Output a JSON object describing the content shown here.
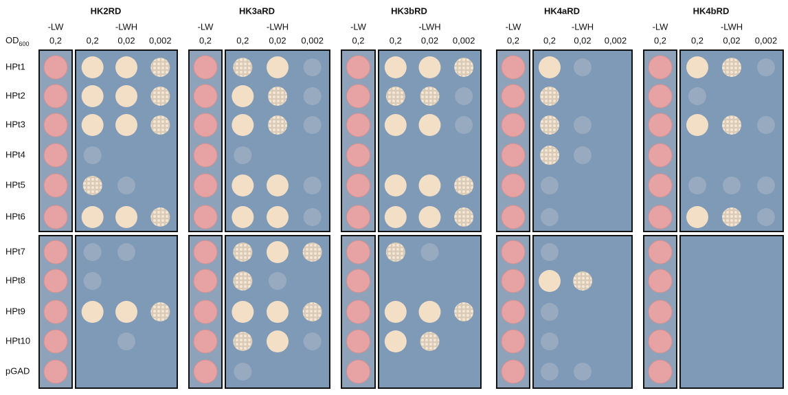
{
  "figure": {
    "od_label": "OD",
    "od_subscript": "600",
    "media": {
      "selective_low": "-LW",
      "selective_high": "-LWH"
    },
    "concentrations": [
      "0,2",
      "0,02",
      "0,002"
    ],
    "panels": [
      {
        "title": "HK2RD"
      },
      {
        "title": "HK3aRD"
      },
      {
        "title": "HK3bRD"
      },
      {
        "title": "HK4aRD"
      },
      {
        "title": "HK4bRD"
      }
    ],
    "rows": [
      "HPt1",
      "HPt2",
      "HPt3",
      "HPt4",
      "HPt5",
      "HPt6",
      "HPt7",
      "HPt8",
      "HPt9",
      "HPt10",
      "pGAD"
    ]
  }
}
